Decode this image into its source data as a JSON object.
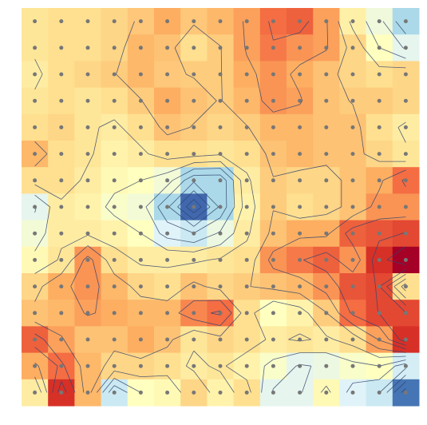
{
  "chart_data": {
    "type": "heatmap",
    "colormap": "RdYlBu_r",
    "vlim": [
      0,
      1
    ],
    "contours": true,
    "points": true,
    "values": [
      [
        0.58,
        0.6,
        0.6,
        0.62,
        0.65,
        0.7,
        0.65,
        0.68,
        0.72,
        0.8,
        0.82,
        0.72,
        0.55,
        0.45,
        0.3
      ],
      [
        0.58,
        0.6,
        0.6,
        0.62,
        0.68,
        0.66,
        0.6,
        0.64,
        0.72,
        0.78,
        0.74,
        0.72,
        0.62,
        0.5,
        0.42
      ],
      [
        0.56,
        0.6,
        0.62,
        0.64,
        0.68,
        0.65,
        0.64,
        0.64,
        0.7,
        0.74,
        0.7,
        0.66,
        0.62,
        0.6,
        0.62
      ],
      [
        0.58,
        0.6,
        0.58,
        0.6,
        0.64,
        0.7,
        0.66,
        0.64,
        0.68,
        0.74,
        0.72,
        0.66,
        0.64,
        0.64,
        0.62
      ],
      [
        0.6,
        0.62,
        0.58,
        0.56,
        0.6,
        0.66,
        0.64,
        0.62,
        0.64,
        0.68,
        0.68,
        0.66,
        0.66,
        0.6,
        0.56
      ],
      [
        0.68,
        0.6,
        0.58,
        0.54,
        0.56,
        0.6,
        0.6,
        0.58,
        0.6,
        0.66,
        0.68,
        0.66,
        0.66,
        0.62,
        0.58
      ],
      [
        0.6,
        0.6,
        0.56,
        0.52,
        0.5,
        0.46,
        0.3,
        0.3,
        0.56,
        0.64,
        0.62,
        0.62,
        0.66,
        0.7,
        0.8
      ],
      [
        0.42,
        0.56,
        0.54,
        0.48,
        0.46,
        0.3,
        0.08,
        0.3,
        0.54,
        0.64,
        0.6,
        0.62,
        0.66,
        0.74,
        0.74
      ],
      [
        0.46,
        0.56,
        0.56,
        0.54,
        0.5,
        0.4,
        0.36,
        0.44,
        0.56,
        0.66,
        0.7,
        0.7,
        0.82,
        0.84,
        0.86
      ],
      [
        0.52,
        0.58,
        0.74,
        0.6,
        0.56,
        0.56,
        0.56,
        0.58,
        0.6,
        0.74,
        0.78,
        0.82,
        0.74,
        0.9,
        1.0
      ],
      [
        0.62,
        0.7,
        0.74,
        0.68,
        0.62,
        0.6,
        0.66,
        0.62,
        0.64,
        0.66,
        0.68,
        0.74,
        0.84,
        0.86,
        0.6
      ],
      [
        0.66,
        0.68,
        0.72,
        0.7,
        0.68,
        0.68,
        0.76,
        0.8,
        0.6,
        0.5,
        0.54,
        0.64,
        0.8,
        0.86,
        0.86
      ],
      [
        0.82,
        0.72,
        0.66,
        0.66,
        0.7,
        0.66,
        0.58,
        0.62,
        0.6,
        0.56,
        0.58,
        0.56,
        0.6,
        0.72,
        0.9
      ],
      [
        0.7,
        0.8,
        0.68,
        0.62,
        0.62,
        0.6,
        0.56,
        0.58,
        0.54,
        0.48,
        0.42,
        0.44,
        0.48,
        0.5,
        0.38
      ],
      [
        0.56,
        0.9,
        0.68,
        0.36,
        0.5,
        0.52,
        0.62,
        0.54,
        0.6,
        0.42,
        0.42,
        0.52,
        0.4,
        0.36,
        0.1
      ]
    ]
  }
}
